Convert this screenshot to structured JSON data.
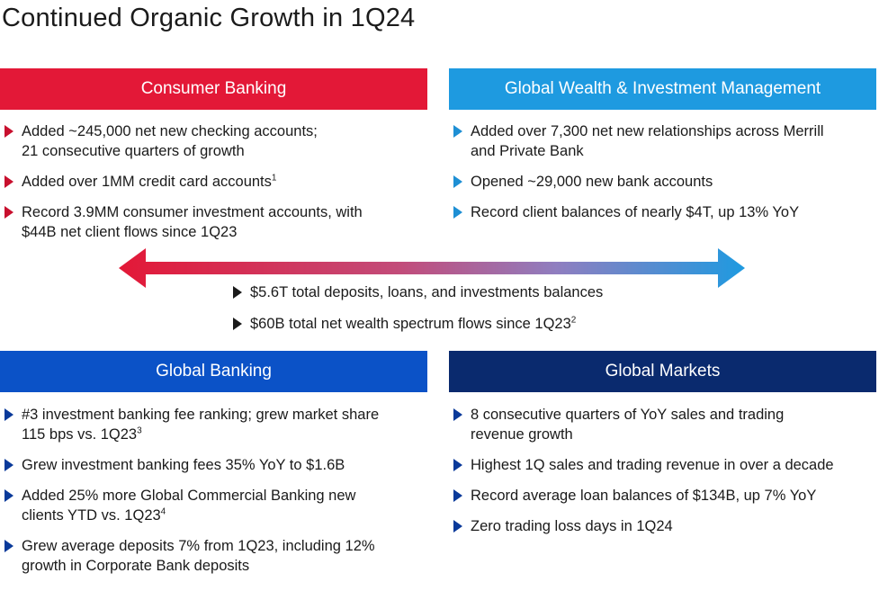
{
  "title": "Continued Organic Growth in 1Q24",
  "colors": {
    "consumer": "#e31837",
    "gwim": "#1e9ae0",
    "global_banking": "#0b52c7",
    "global_markets": "#0a2a6e"
  },
  "consumer": {
    "header": "Consumer Banking",
    "bullets": [
      {
        "line1": "Added ~245,000 net new checking accounts;",
        "line2": "21 consecutive quarters of growth",
        "sup": ""
      },
      {
        "line1": "Added over 1MM credit card accounts",
        "line2": "",
        "sup": "1"
      },
      {
        "line1": "Record 3.9MM consumer investment accounts, with",
        "line2": "$44B net client flows since 1Q23",
        "sup": ""
      }
    ]
  },
  "gwim": {
    "header": "Global Wealth & Investment Management",
    "bullets": [
      {
        "line1": "Added over 7,300 net new relationships across Merrill",
        "line2": "and Private Bank",
        "sup": ""
      },
      {
        "line1": "Opened ~29,000 new bank accounts",
        "line2": "",
        "sup": ""
      },
      {
        "line1": "Record client balances of nearly $4T, up 13% YoY",
        "line2": "",
        "sup": ""
      }
    ]
  },
  "center": {
    "bullets": [
      {
        "text": "$5.6T total deposits, loans, and investments balances",
        "sup": ""
      },
      {
        "text": "$60B total net wealth spectrum flows since 1Q23",
        "sup": "2"
      }
    ]
  },
  "global_banking": {
    "header": "Global Banking",
    "bullets": [
      {
        "line1": "#3 investment banking fee ranking; grew market share",
        "line2": "115 bps vs. 1Q23",
        "sup": "3"
      },
      {
        "line1": "Grew investment banking fees 35% YoY to $1.6B",
        "line2": "",
        "sup": ""
      },
      {
        "line1": "Added 25% more Global Commercial Banking new",
        "line2": "clients YTD vs. 1Q23",
        "sup": "4"
      },
      {
        "line1": "Grew average deposits 7% from 1Q23, including 12%",
        "line2": "growth in Corporate Bank deposits",
        "sup": ""
      }
    ]
  },
  "global_markets": {
    "header": "Global Markets",
    "bullets": [
      {
        "line1": "8 consecutive quarters of YoY sales and trading",
        "line2": "revenue growth",
        "sup": ""
      },
      {
        "line1": "Highest 1Q sales and trading revenue in over a decade",
        "line2": "",
        "sup": ""
      },
      {
        "line1": "Record average loan balances of $134B, up 7% YoY",
        "line2": "",
        "sup": ""
      },
      {
        "line1": "Zero trading loss days in 1Q24",
        "line2": "",
        "sup": ""
      }
    ]
  }
}
